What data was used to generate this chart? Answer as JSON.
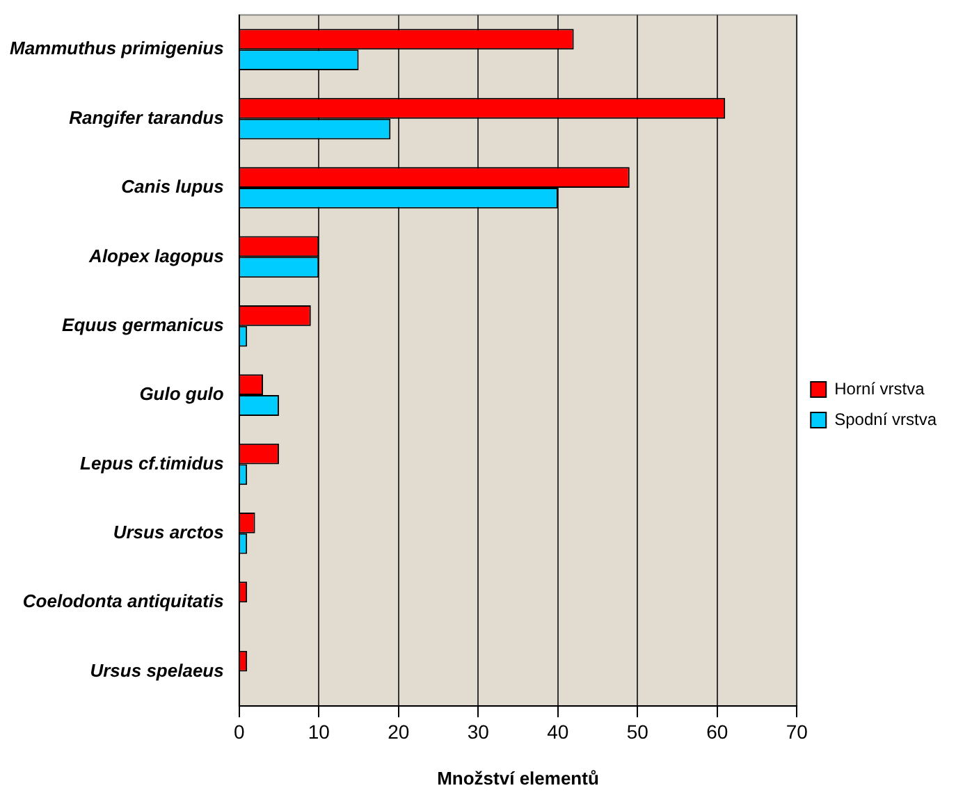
{
  "chart_data": {
    "type": "bar",
    "orientation": "horizontal",
    "xlabel": "Množství elementů",
    "categories": [
      "Mammuthus primigenius",
      "Rangifer tarandus",
      "Canis lupus",
      "Alopex lagopus",
      "Equus germanicus",
      "Gulo gulo",
      "Lepus cf.timidus",
      "Ursus arctos",
      "Coelodonta antiquitatis",
      "Ursus spelaeus"
    ],
    "series": [
      {
        "name": "Horní vrstva",
        "color": "#ff0000",
        "values": [
          42,
          61,
          49,
          10,
          9,
          3,
          5,
          2,
          1,
          1
        ]
      },
      {
        "name": "Spodní vrstva",
        "color": "#00ccff",
        "values": [
          15,
          19,
          40,
          10,
          1,
          5,
          1,
          1,
          0,
          0
        ]
      }
    ],
    "xlim": [
      0,
      70
    ],
    "xticks": [
      0,
      10,
      20,
      30,
      40,
      50,
      60,
      70
    ],
    "grid": "x",
    "legend": "right"
  }
}
